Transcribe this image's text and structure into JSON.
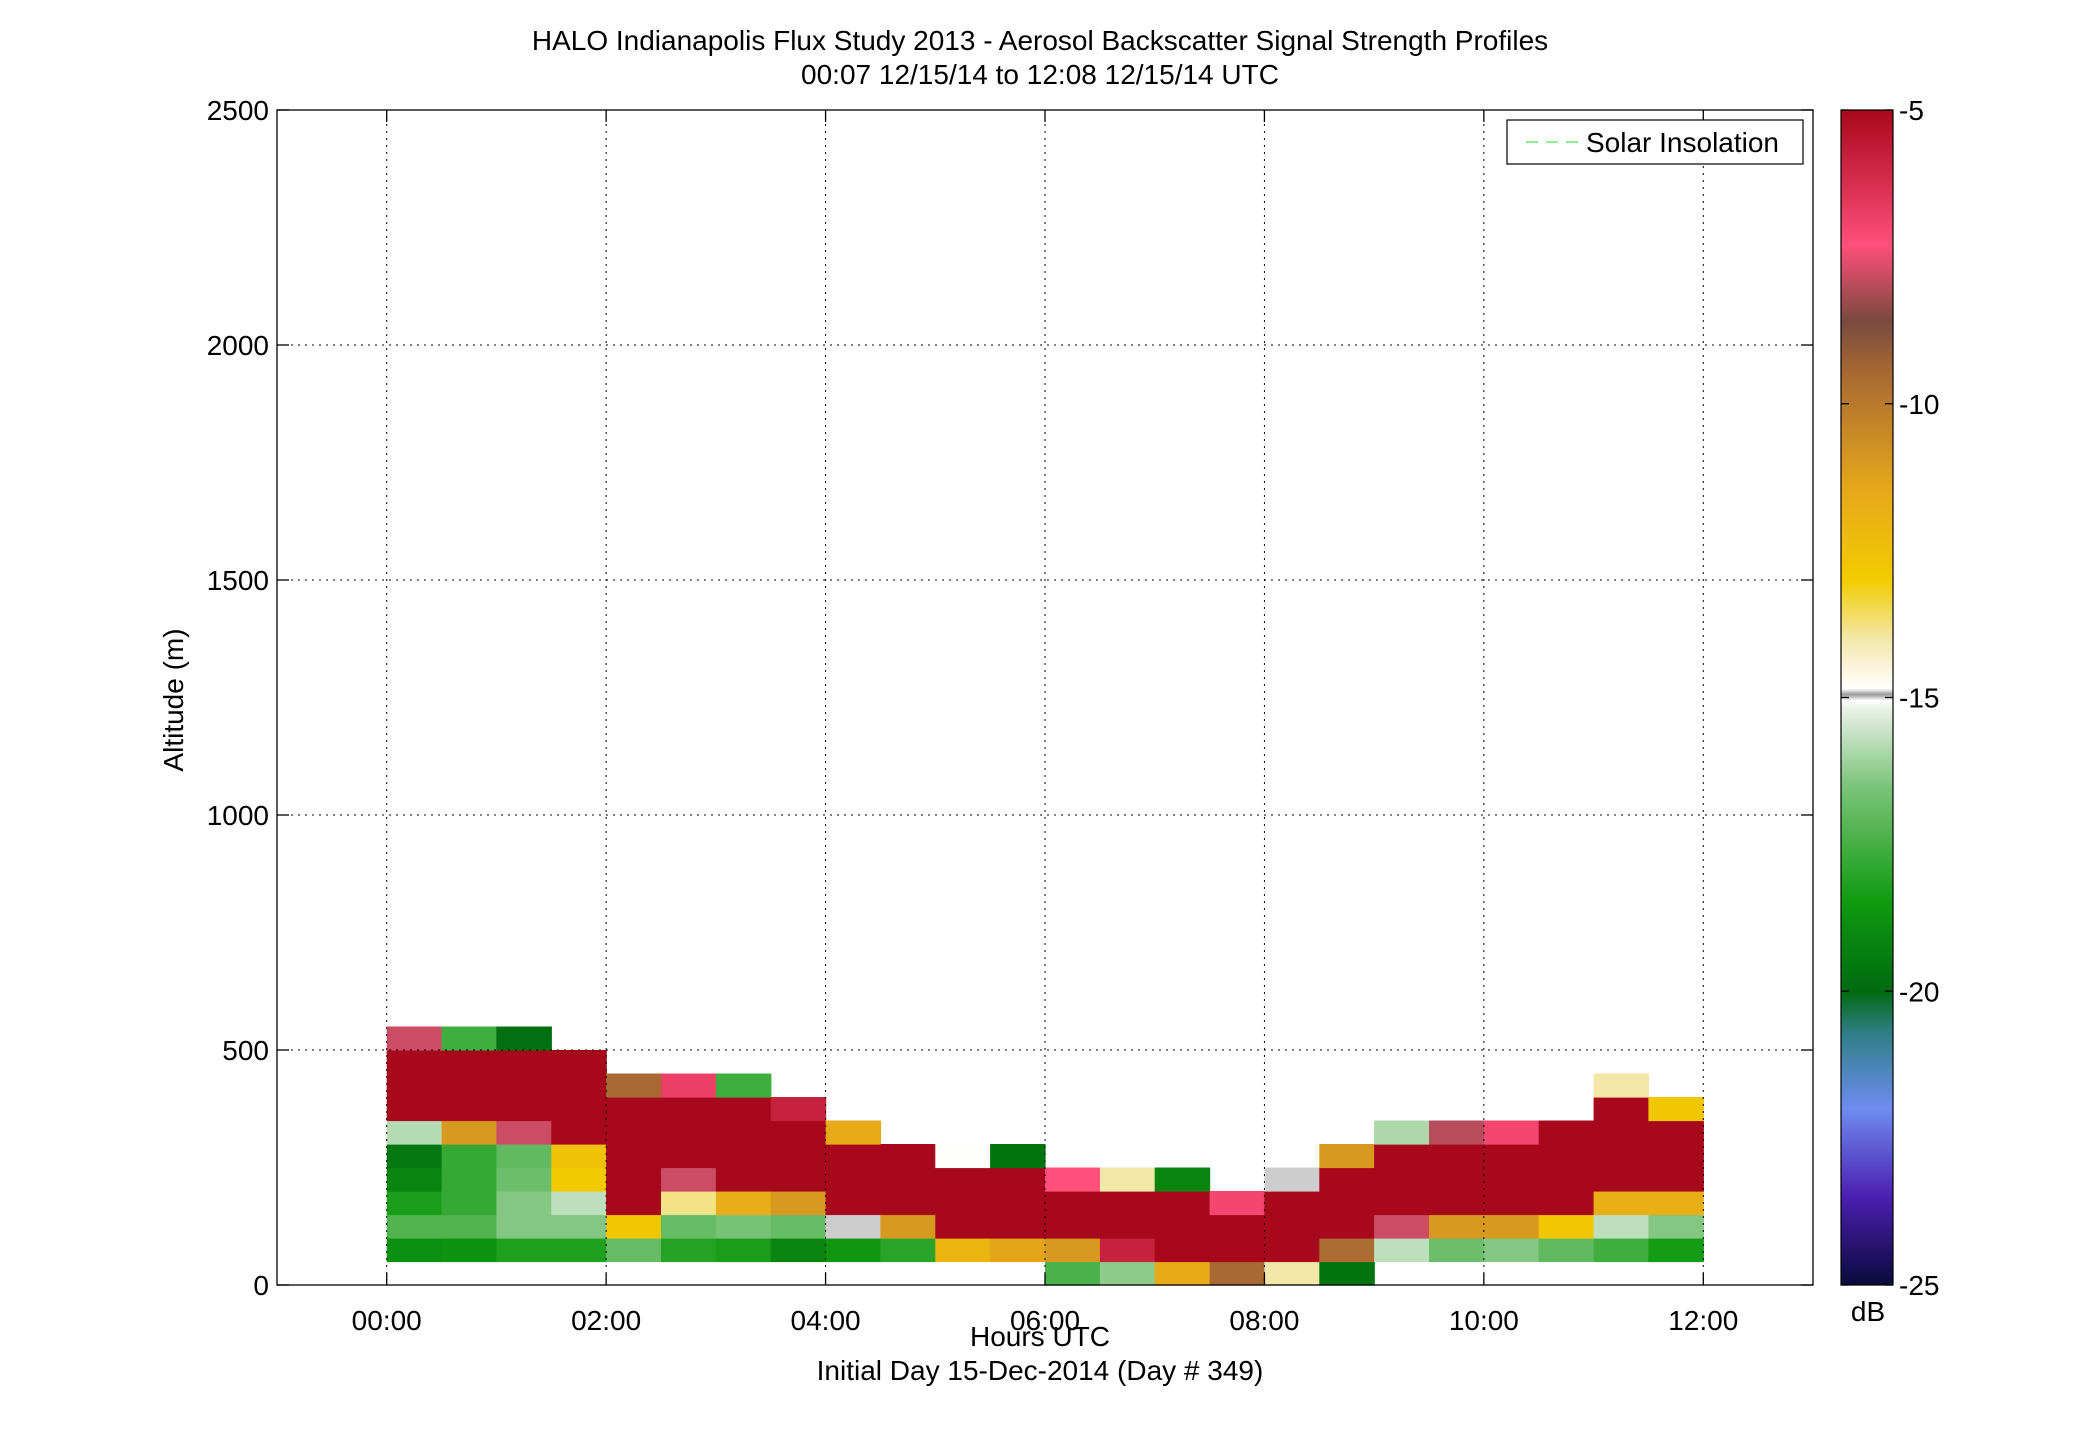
{
  "chart_data": {
    "type": "heatmap",
    "title": "HALO Indianapolis Flux Study 2013 - Aerosol Backscatter Signal Strength Profiles",
    "subtitle": "00:07 12/15/14 to 12:08 12/15/14  UTC",
    "xlabel": "Hours UTC",
    "xlabel2": "Initial Day 15-Dec-2014 (Day # 349)",
    "ylabel": "Altitude (m)",
    "xlim": [
      -1,
      13
    ],
    "ylim": [
      0,
      2500
    ],
    "xticks": [
      0,
      2,
      4,
      6,
      8,
      10,
      12
    ],
    "xtick_labels": [
      "00:00",
      "02:00",
      "04:00",
      "06:00",
      "08:00",
      "10:00",
      "12:00"
    ],
    "yticks": [
      0,
      500,
      1000,
      1500,
      2000,
      2500
    ],
    "ytick_labels": [
      "0",
      "500",
      "1000",
      "1500",
      "2000",
      "2500"
    ],
    "grid": true,
    "legend": {
      "label": "Solar Insolation",
      "placement": "top-right",
      "color": "#8ef08e"
    },
    "colorbar": {
      "label": "dB",
      "range": [
        -25,
        -5
      ],
      "ticks": [
        -5,
        -10,
        -15,
        -20,
        -25
      ],
      "tick_labels": [
        "-5",
        "-10",
        "-15",
        "-20",
        "-25"
      ],
      "stops": [
        {
          "value": -25,
          "color": "#0a0a3c"
        },
        {
          "value": -23.5,
          "color": "#4b1fb0"
        },
        {
          "value": -22,
          "color": "#6e8cf0"
        },
        {
          "value": -20.7,
          "color": "#2f7f86"
        },
        {
          "value": -20,
          "color": "#006a10"
        },
        {
          "value": -18.5,
          "color": "#0f9a0f"
        },
        {
          "value": -16.5,
          "color": "#7cc47a"
        },
        {
          "value": -15.2,
          "color": "#e8f0e6"
        },
        {
          "value": -15.05,
          "color": "#ffffff"
        },
        {
          "value": -14.95,
          "color": "#9a9a9a"
        },
        {
          "value": -14.85,
          "color": "#ffffff"
        },
        {
          "value": -14,
          "color": "#f3e7a8"
        },
        {
          "value": -13,
          "color": "#f2cc00"
        },
        {
          "value": -11.5,
          "color": "#e8a81a"
        },
        {
          "value": -9.5,
          "color": "#a86a32"
        },
        {
          "value": -8.6,
          "color": "#7a4a3e"
        },
        {
          "value": -7.3,
          "color": "#ff4f7a"
        },
        {
          "value": -5,
          "color": "#a8081c"
        }
      ]
    },
    "bins": {
      "time_start": 0.125,
      "time_step": 0.5,
      "alt_start": 50,
      "alt_step": 50
    },
    "cells": [
      {
        "t": 0.25,
        "alt": [
          [
            100,
            -18.8
          ],
          [
            150,
            -17.3
          ],
          [
            200,
            -18.3
          ],
          [
            250,
            -19.2
          ],
          [
            300,
            -19.6
          ],
          [
            350,
            -15.8
          ],
          [
            400,
            -5.0
          ],
          [
            450,
            -5.0
          ],
          [
            500,
            -5.0
          ],
          [
            550,
            -7.8
          ]
        ]
      },
      {
        "t": 0.75,
        "alt": [
          [
            100,
            -18.7
          ],
          [
            150,
            -17.3
          ],
          [
            200,
            -17.8
          ],
          [
            250,
            -17.8
          ],
          [
            300,
            -17.8
          ],
          [
            350,
            -11.0
          ],
          [
            400,
            -5.0
          ],
          [
            450,
            -5.0
          ],
          [
            500,
            -5.0
          ],
          [
            550,
            -17.6
          ]
        ]
      },
      {
        "t": 1.25,
        "alt": [
          [
            100,
            -18.2
          ],
          [
            150,
            -16.4
          ],
          [
            200,
            -16.4
          ],
          [
            250,
            -16.8
          ],
          [
            300,
            -17.0
          ],
          [
            350,
            -7.8
          ],
          [
            400,
            -5.0
          ],
          [
            450,
            -5.0
          ],
          [
            500,
            -5.0
          ],
          [
            550,
            -19.8
          ]
        ]
      },
      {
        "t": 1.75,
        "alt": [
          [
            100,
            -18.2
          ],
          [
            150,
            -16.4
          ],
          [
            200,
            -15.7
          ],
          [
            250,
            -12.9
          ],
          [
            300,
            -12.6
          ],
          [
            350,
            -5.0
          ],
          [
            400,
            -5.0
          ],
          [
            450,
            -5.0
          ],
          [
            500,
            -5.0
          ]
        ]
      },
      {
        "t": 2.25,
        "alt": [
          [
            100,
            -16.9
          ],
          [
            150,
            -12.8
          ],
          [
            200,
            -5.0
          ],
          [
            250,
            -5.0
          ],
          [
            300,
            -5.0
          ],
          [
            350,
            -5.0
          ],
          [
            400,
            -5.0
          ],
          [
            450,
            -9.5
          ]
        ]
      },
      {
        "t": 2.75,
        "alt": [
          [
            100,
            -18.1
          ],
          [
            150,
            -16.9
          ],
          [
            200,
            -13.8
          ],
          [
            250,
            -7.8
          ],
          [
            300,
            -5.0
          ],
          [
            350,
            -5.0
          ],
          [
            400,
            -5.0
          ],
          [
            450,
            -6.8
          ]
        ]
      },
      {
        "t": 3.25,
        "alt": [
          [
            100,
            -18.3
          ],
          [
            150,
            -16.6
          ],
          [
            200,
            -11.7
          ],
          [
            250,
            -5.0
          ],
          [
            300,
            -5.0
          ],
          [
            350,
            -5.0
          ],
          [
            400,
            -5.0
          ],
          [
            450,
            -17.6
          ]
        ]
      },
      {
        "t": 3.75,
        "alt": [
          [
            100,
            -19.2
          ],
          [
            150,
            -16.9
          ],
          [
            200,
            -11.0
          ],
          [
            250,
            -5.0
          ],
          [
            300,
            -5.0
          ],
          [
            350,
            -5.0
          ],
          [
            400,
            -5.8
          ]
        ]
      },
      {
        "t": 4.25,
        "alt": [
          [
            100,
            -18.6
          ],
          [
            150,
            -15.0
          ],
          [
            200,
            -5.0
          ],
          [
            250,
            -5.0
          ],
          [
            300,
            -5.0
          ],
          [
            350,
            -11.6
          ]
        ]
      },
      {
        "t": 4.75,
        "alt": [
          [
            100,
            -18.0
          ],
          [
            150,
            -11.0
          ],
          [
            200,
            -5.0
          ],
          [
            250,
            -5.0
          ],
          [
            300,
            -5.0
          ]
        ]
      },
      {
        "t": 5.25,
        "alt": [
          [
            100,
            -12.0
          ],
          [
            150,
            -5.0
          ],
          [
            200,
            -5.0
          ],
          [
            250,
            -5.0
          ],
          [
            300,
            -14.8
          ]
        ]
      },
      {
        "t": 5.75,
        "alt": [
          [
            100,
            -11.4
          ],
          [
            150,
            -5.0
          ],
          [
            200,
            -5.0
          ],
          [
            250,
            -5.0
          ],
          [
            300,
            -19.7
          ]
        ]
      },
      {
        "t": 6.25,
        "alt": [
          [
            50,
            -17.4
          ],
          [
            100,
            -11.0
          ],
          [
            150,
            -5.0
          ],
          [
            200,
            -5.0
          ],
          [
            250,
            -7.3
          ]
        ]
      },
      {
        "t": 6.75,
        "alt": [
          [
            50,
            -16.3
          ],
          [
            100,
            -5.8
          ],
          [
            150,
            -5.0
          ],
          [
            200,
            -5.0
          ],
          [
            250,
            -14.0
          ]
        ]
      },
      {
        "t": 7.25,
        "alt": [
          [
            50,
            -11.6
          ],
          [
            100,
            -5.0
          ],
          [
            150,
            -5.0
          ],
          [
            200,
            -5.0
          ],
          [
            250,
            -19.2
          ]
        ]
      },
      {
        "t": 7.75,
        "alt": [
          [
            50,
            -9.5
          ],
          [
            100,
            -5.0
          ],
          [
            150,
            -5.0
          ],
          [
            200,
            -7.0
          ]
        ]
      },
      {
        "t": 8.25,
        "alt": [
          [
            50,
            -14.0
          ],
          [
            100,
            -5.0
          ],
          [
            150,
            -5.0
          ],
          [
            200,
            -5.0
          ],
          [
            250,
            -15.0
          ]
        ]
      },
      {
        "t": 8.75,
        "alt": [
          [
            50,
            -19.7
          ],
          [
            100,
            -9.6
          ],
          [
            150,
            -5.0
          ],
          [
            200,
            -5.0
          ],
          [
            250,
            -5.0
          ],
          [
            300,
            -11.0
          ]
        ]
      },
      {
        "t": 9.25,
        "alt": [
          [
            100,
            -15.7
          ],
          [
            150,
            -7.8
          ],
          [
            200,
            -5.0
          ],
          [
            250,
            -5.0
          ],
          [
            300,
            -5.0
          ],
          [
            350,
            -15.9
          ]
        ]
      },
      {
        "t": 9.75,
        "alt": [
          [
            100,
            -16.8
          ],
          [
            150,
            -11.0
          ],
          [
            200,
            -5.0
          ],
          [
            250,
            -5.0
          ],
          [
            300,
            -5.0
          ],
          [
            350,
            -8.0
          ]
        ]
      },
      {
        "t": 10.25,
        "alt": [
          [
            100,
            -16.4
          ],
          [
            150,
            -11.0
          ],
          [
            200,
            -5.0
          ],
          [
            250,
            -5.0
          ],
          [
            300,
            -5.0
          ],
          [
            350,
            -7.0
          ]
        ]
      },
      {
        "t": 10.75,
        "alt": [
          [
            100,
            -17.0
          ],
          [
            150,
            -12.8
          ],
          [
            200,
            -5.0
          ],
          [
            250,
            -5.0
          ],
          [
            300,
            -5.0
          ],
          [
            350,
            -5.0
          ]
        ]
      },
      {
        "t": 11.25,
        "alt": [
          [
            100,
            -17.6
          ],
          [
            150,
            -15.7
          ],
          [
            200,
            -11.8
          ],
          [
            250,
            -5.0
          ],
          [
            300,
            -5.0
          ],
          [
            350,
            -5.0
          ],
          [
            400,
            -5.0
          ],
          [
            450,
            -14.0
          ]
        ]
      },
      {
        "t": 11.75,
        "alt": [
          [
            100,
            -18.4
          ],
          [
            150,
            -16.4
          ],
          [
            200,
            -11.8
          ],
          [
            250,
            -5.0
          ],
          [
            300,
            -5.0
          ],
          [
            350,
            -5.0
          ],
          [
            400,
            -12.8
          ]
        ]
      }
    ]
  }
}
